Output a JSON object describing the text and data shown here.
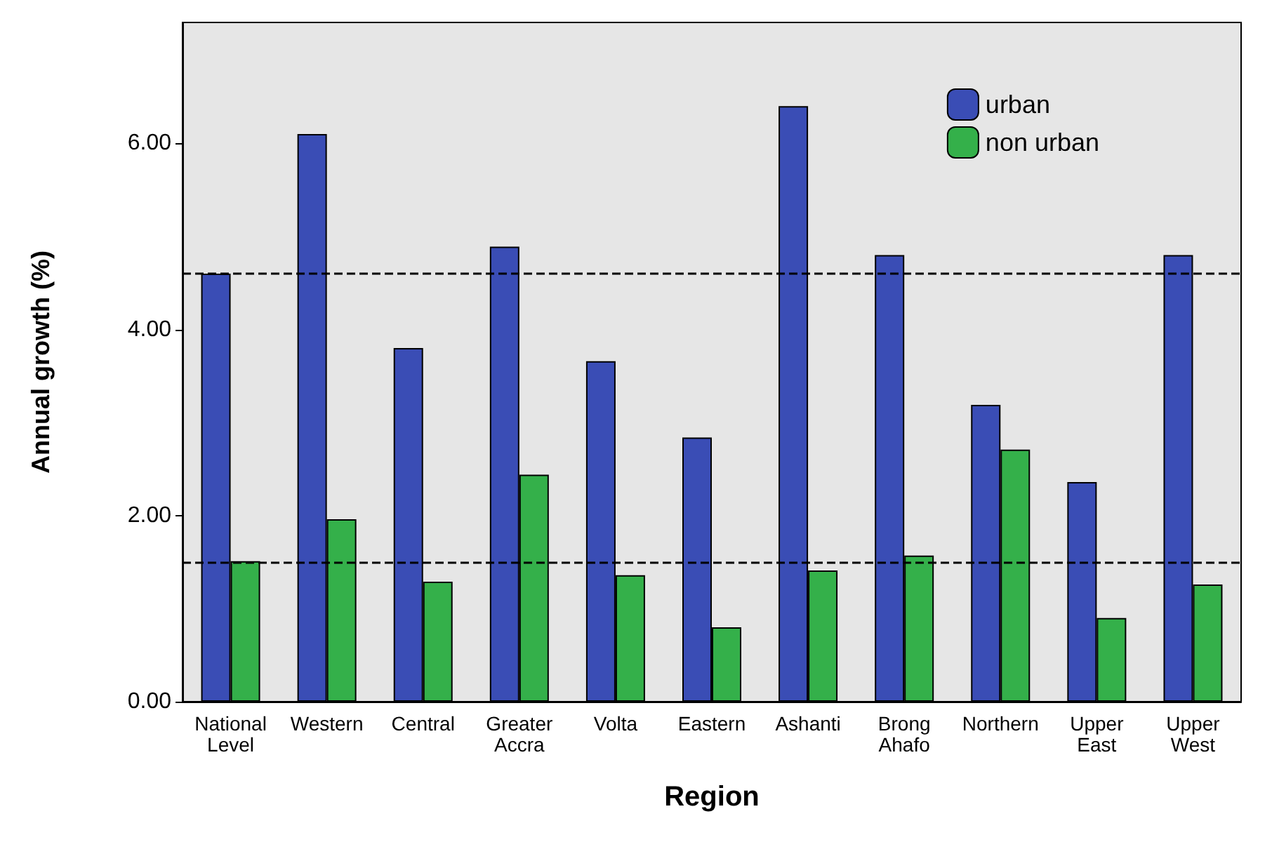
{
  "chart_data": {
    "type": "bar",
    "xlabel": "Region",
    "ylabel": "Annual growth (%)",
    "categories": [
      "National\nLevel",
      "Western",
      "Central",
      "Greater\nAccra",
      "Volta",
      "Eastern",
      "Ashanti",
      "Brong\nAhafo",
      "Northern",
      "Upper\nEast",
      "Upper\nWest"
    ],
    "series": [
      {
        "name": "urban",
        "color": "#3a4db5",
        "values": [
          4.6,
          6.1,
          3.8,
          4.89,
          3.66,
          2.84,
          6.4,
          4.8,
          3.19,
          2.36,
          4.8
        ]
      },
      {
        "name": "non urban",
        "color": "#34b04a",
        "values": [
          1.51,
          1.96,
          1.29,
          2.44,
          1.36,
          0.8,
          1.41,
          1.57,
          2.71,
          0.9,
          1.26
        ]
      }
    ],
    "ylim": [
      0,
      7.3
    ],
    "yticks": [
      {
        "value": 0,
        "label": "0.00"
      },
      {
        "value": 2,
        "label": "2.00"
      },
      {
        "value": 4,
        "label": "4.00"
      },
      {
        "value": 6,
        "label": "6.00"
      }
    ],
    "ref_lines": [
      {
        "axis": "y",
        "value": 4.6,
        "line_style": "dashed"
      },
      {
        "axis": "y",
        "value": 1.5,
        "line_style": "dashed"
      }
    ],
    "grid": false,
    "legend": "top right"
  }
}
